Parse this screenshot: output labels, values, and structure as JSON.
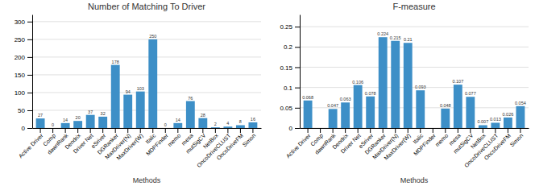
{
  "chart_data": [
    {
      "type": "bar",
      "title": "Number of Matching To Driver",
      "xlabel": "Methods",
      "categories": [
        "Active Driver",
        "Comp",
        "dawnRank",
        "Dendrix",
        "Driver Net",
        "eSriver",
        "DGRanker",
        "MaxDriver(N)",
        "MaxDriver(W)",
        "Italic",
        "MDPFinder",
        "memo",
        "mesa",
        "mutSigCV",
        "NetBox",
        "OncoDriveCLUST",
        "OncoDriveFM",
        "Simon"
      ],
      "values": [
        27,
        0,
        14,
        20,
        37,
        32,
        178,
        94,
        103,
        250,
        0,
        14,
        76,
        28,
        2,
        4,
        8,
        16
      ],
      "color": "#3d8fc7",
      "ylim": [
        0,
        320
      ],
      "yticks": [
        0,
        50,
        100,
        150,
        200,
        250,
        300
      ],
      "grid": true,
      "data_labels": true
    },
    {
      "type": "bar",
      "title": "F-measure",
      "xlabel": "Methods",
      "categories": [
        "Active Driver",
        "Comp",
        "dawnRank",
        "Dendrix",
        "Driver Net",
        "eSriver",
        "DGRanker",
        "MaxDriver(N)",
        "MaxDriver(W)",
        "Italic",
        "MDPFinder",
        "memo",
        "mesa",
        "mutSigCV",
        "NetBox",
        "OncoDriveCLUST",
        "OncoDriveFM",
        "Simon"
      ],
      "values": [
        0.068,
        0,
        0.047,
        0.063,
        0.106,
        0.078,
        0.224,
        0.215,
        0.21,
        0.093,
        0,
        0.048,
        0.107,
        0.077,
        0.007,
        0.013,
        0.026,
        0.054
      ],
      "value_labels": [
        "0.068",
        null,
        "0.047",
        "0.063",
        "0.106",
        "0.078",
        "0.224",
        "0.215",
        "0.21",
        "0.093",
        null,
        "0.048",
        "0.107",
        "0.077",
        "0.007",
        "0.013",
        "0.026",
        "0.054"
      ],
      "color": "#3d8fc7",
      "ylim": [
        0,
        0.28
      ],
      "yticks": [
        0,
        0.05,
        0.1,
        0.15,
        0.2,
        0.25
      ],
      "grid": true,
      "data_labels": true
    }
  ]
}
